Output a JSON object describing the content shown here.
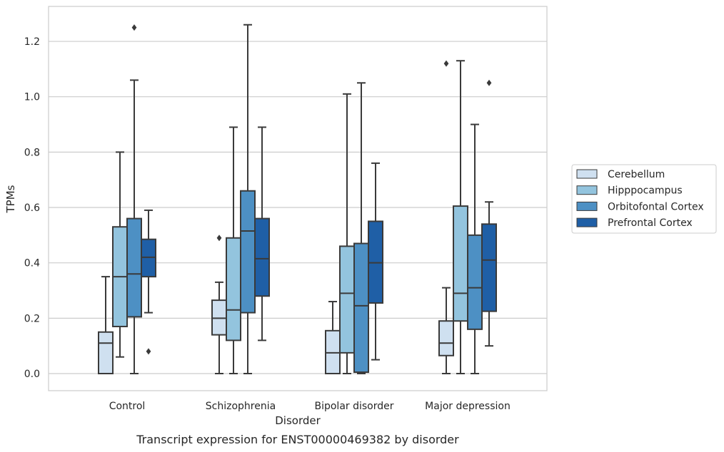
{
  "chart_data": {
    "type": "box",
    "caption": "Transcript expression for ENST00000469382 by disorder",
    "xlabel": "Disorder",
    "ylabel": "TPMs",
    "ylim": [
      -0.06,
      1.32
    ],
    "yticks": [
      "0.0",
      "0.2",
      "0.4",
      "0.6",
      "0.8",
      "1.0",
      "1.2"
    ],
    "categories": [
      "Control",
      "Schizophrenia",
      "Bipolar disorder",
      "Major depression"
    ],
    "grid": true,
    "legend_position": "right",
    "series": [
      {
        "name": "Cerebellum",
        "color": "#cfe0f0",
        "boxes": [
          {
            "whislo": 0.0,
            "q1": 0.0,
            "med": 0.11,
            "q3": 0.15,
            "whishi": 0.35,
            "fliers": []
          },
          {
            "whislo": 0.0,
            "q1": 0.14,
            "med": 0.2,
            "q3": 0.265,
            "whishi": 0.33,
            "fliers": [
              0.49
            ]
          },
          {
            "whislo": 0.0,
            "q1": 0.0,
            "med": 0.075,
            "q3": 0.155,
            "whishi": 0.26,
            "fliers": []
          },
          {
            "whislo": 0.0,
            "q1": 0.065,
            "med": 0.11,
            "q3": 0.19,
            "whishi": 0.31,
            "fliers": [
              1.12
            ]
          }
        ]
      },
      {
        "name": "Hipppocampus",
        "color": "#93c4de",
        "boxes": [
          {
            "whislo": 0.06,
            "q1": 0.17,
            "med": 0.35,
            "q3": 0.53,
            "whishi": 0.8,
            "fliers": []
          },
          {
            "whislo": 0.0,
            "q1": 0.12,
            "med": 0.23,
            "q3": 0.49,
            "whishi": 0.89,
            "fliers": []
          },
          {
            "whislo": 0.0,
            "q1": 0.075,
            "med": 0.29,
            "q3": 0.46,
            "whishi": 1.01,
            "fliers": []
          },
          {
            "whislo": 0.0,
            "q1": 0.19,
            "med": 0.29,
            "q3": 0.605,
            "whishi": 1.13,
            "fliers": []
          }
        ]
      },
      {
        "name": "Orbitofontal Cortex",
        "color": "#4d90c4",
        "boxes": [
          {
            "whislo": 0.0,
            "q1": 0.205,
            "med": 0.36,
            "q3": 0.56,
            "whishi": 1.06,
            "fliers": [
              1.25
            ]
          },
          {
            "whislo": 0.0,
            "q1": 0.22,
            "med": 0.515,
            "q3": 0.66,
            "whishi": 1.26,
            "fliers": []
          },
          {
            "whislo": 0.0,
            "q1": 0.005,
            "med": 0.245,
            "q3": 0.47,
            "whishi": 1.05,
            "fliers": []
          },
          {
            "whislo": 0.0,
            "q1": 0.16,
            "med": 0.31,
            "q3": 0.5,
            "whishi": 0.9,
            "fliers": []
          }
        ]
      },
      {
        "name": "Prefrontal Cortex",
        "color": "#1f5fa6",
        "boxes": [
          {
            "whislo": 0.22,
            "q1": 0.35,
            "med": 0.42,
            "q3": 0.485,
            "whishi": 0.59,
            "fliers": [
              0.08
            ]
          },
          {
            "whislo": 0.12,
            "q1": 0.28,
            "med": 0.415,
            "q3": 0.56,
            "whishi": 0.89,
            "fliers": []
          },
          {
            "whislo": 0.05,
            "q1": 0.255,
            "med": 0.4,
            "q3": 0.55,
            "whishi": 0.76,
            "fliers": []
          },
          {
            "whislo": 0.1,
            "q1": 0.225,
            "med": 0.41,
            "q3": 0.54,
            "whishi": 0.62,
            "fliers": [
              1.05
            ]
          }
        ]
      }
    ]
  }
}
